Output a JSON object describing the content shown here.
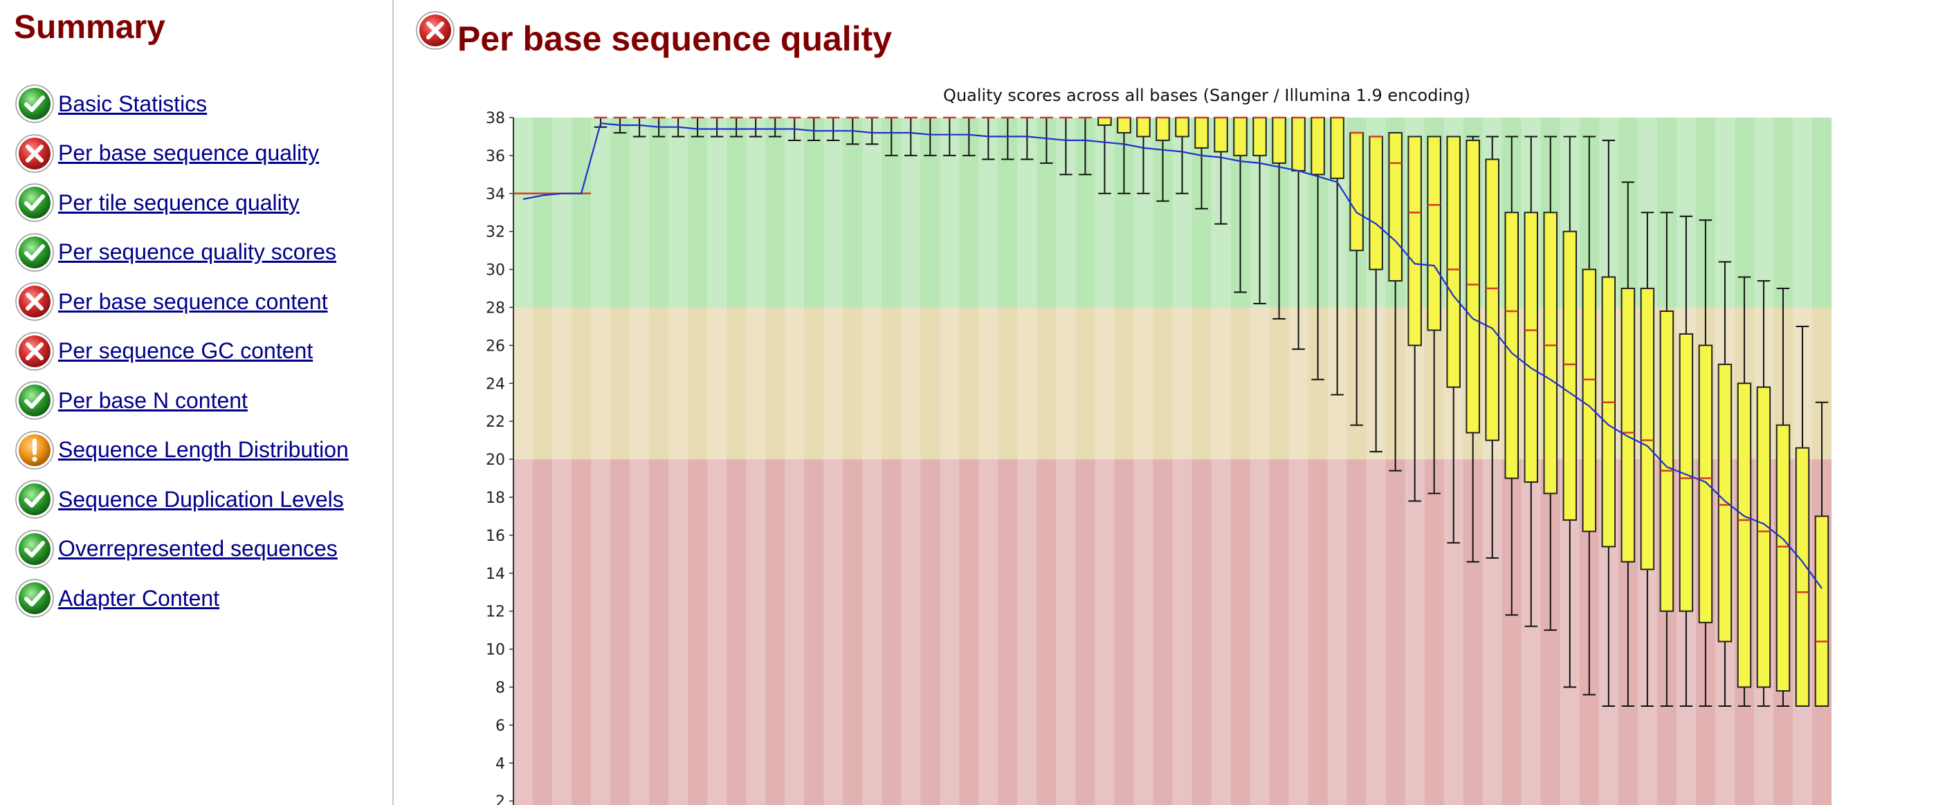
{
  "sidebar": {
    "title": "Summary",
    "items": [
      {
        "label": "Basic Statistics",
        "status": "pass"
      },
      {
        "label": "Per base sequence quality",
        "status": "fail"
      },
      {
        "label": "Per tile sequence quality",
        "status": "pass"
      },
      {
        "label": "Per sequence quality scores",
        "status": "pass"
      },
      {
        "label": "Per base sequence content",
        "status": "fail"
      },
      {
        "label": "Per sequence GC content",
        "status": "fail"
      },
      {
        "label": "Per base N content",
        "status": "pass"
      },
      {
        "label": "Sequence Length Distribution",
        "status": "warn"
      },
      {
        "label": "Sequence Duplication Levels",
        "status": "pass"
      },
      {
        "label": "Overrepresented sequences",
        "status": "pass"
      },
      {
        "label": "Adapter Content",
        "status": "pass"
      }
    ]
  },
  "main": {
    "title": "Per base sequence quality",
    "status": "fail"
  },
  "colors": {
    "pass": "#2e9d2e",
    "fail": "#d42a2a",
    "warn": "#f0961c",
    "title": "#800000",
    "link": "#00008b",
    "box_fill": "#f5f54a",
    "median": "#d23c2c",
    "mean_line": "#1f2fd0",
    "band_good": "#b8e6b4",
    "band_ok": "#e8dcb4",
    "band_bad": "#e2b2b2"
  },
  "chart_data": {
    "type": "box",
    "title": "Quality scores across all bases (Sanger / Illumina 1.9 encoding)",
    "ylim": [
      2,
      38
    ],
    "yticks": [
      2,
      4,
      6,
      8,
      10,
      12,
      14,
      16,
      18,
      20,
      22,
      24,
      26,
      28,
      30,
      32,
      34,
      36,
      38
    ],
    "bands": [
      {
        "from": 28,
        "to": 38,
        "quality": "good"
      },
      {
        "from": 20,
        "to": 28,
        "quality": "ok"
      },
      {
        "from": 0,
        "to": 20,
        "quality": "bad"
      }
    ],
    "position_count": 66,
    "boxes": [
      {
        "pos": 1,
        "q1": 34,
        "median": 34,
        "q3": 34,
        "low": 34,
        "high": 34,
        "mean": 33.7
      },
      {
        "pos": 2,
        "q1": 34,
        "median": 34,
        "q3": 34,
        "low": 34,
        "high": 34,
        "mean": 33.9
      },
      {
        "pos": 3,
        "q1": 34,
        "median": 34,
        "q3": 34,
        "low": 34,
        "high": 34,
        "mean": 34.0
      },
      {
        "pos": 4,
        "q1": 34,
        "median": 34,
        "q3": 34,
        "low": 34,
        "high": 34,
        "mean": 34.0
      },
      {
        "pos": 5,
        "q1": 38,
        "median": 38,
        "q3": 38,
        "low": 37.5,
        "high": 38,
        "mean": 37.7
      },
      {
        "pos": 6,
        "q1": 38,
        "median": 38,
        "q3": 38,
        "low": 37.2,
        "high": 38,
        "mean": 37.6
      },
      {
        "pos": 7,
        "q1": 38,
        "median": 38,
        "q3": 38,
        "low": 37.0,
        "high": 38,
        "mean": 37.6
      },
      {
        "pos": 8,
        "q1": 38,
        "median": 38,
        "q3": 38,
        "low": 37.0,
        "high": 38,
        "mean": 37.5
      },
      {
        "pos": 9,
        "q1": 38,
        "median": 38,
        "q3": 38,
        "low": 37.0,
        "high": 38,
        "mean": 37.5
      },
      {
        "pos": 10,
        "q1": 38,
        "median": 38,
        "q3": 38,
        "low": 37.0,
        "high": 38,
        "mean": 37.4
      },
      {
        "pos": 11,
        "q1": 38,
        "median": 38,
        "q3": 38,
        "low": 37.0,
        "high": 38,
        "mean": 37.4
      },
      {
        "pos": 12,
        "q1": 38,
        "median": 38,
        "q3": 38,
        "low": 37.0,
        "high": 38,
        "mean": 37.4
      },
      {
        "pos": 13,
        "q1": 38,
        "median": 38,
        "q3": 38,
        "low": 37.0,
        "high": 38,
        "mean": 37.4
      },
      {
        "pos": 14,
        "q1": 38,
        "median": 38,
        "q3": 38,
        "low": 37.0,
        "high": 38,
        "mean": 37.4
      },
      {
        "pos": 15,
        "q1": 38,
        "median": 38,
        "q3": 38,
        "low": 36.8,
        "high": 38,
        "mean": 37.4
      },
      {
        "pos": 16,
        "q1": 38,
        "median": 38,
        "q3": 38,
        "low": 36.8,
        "high": 38,
        "mean": 37.3
      },
      {
        "pos": 17,
        "q1": 38,
        "median": 38,
        "q3": 38,
        "low": 36.8,
        "high": 38,
        "mean": 37.3
      },
      {
        "pos": 18,
        "q1": 38,
        "median": 38,
        "q3": 38,
        "low": 36.6,
        "high": 38,
        "mean": 37.3
      },
      {
        "pos": 19,
        "q1": 38,
        "median": 38,
        "q3": 38,
        "low": 36.6,
        "high": 38,
        "mean": 37.2
      },
      {
        "pos": 20,
        "q1": 38,
        "median": 38,
        "q3": 38,
        "low": 36.0,
        "high": 38,
        "mean": 37.2
      },
      {
        "pos": 21,
        "q1": 38,
        "median": 38,
        "q3": 38,
        "low": 36.0,
        "high": 38,
        "mean": 37.2
      },
      {
        "pos": 22,
        "q1": 38,
        "median": 38,
        "q3": 38,
        "low": 36.0,
        "high": 38,
        "mean": 37.1
      },
      {
        "pos": 23,
        "q1": 38,
        "median": 38,
        "q3": 38,
        "low": 36.0,
        "high": 38,
        "mean": 37.1
      },
      {
        "pos": 24,
        "q1": 38,
        "median": 38,
        "q3": 38,
        "low": 36.0,
        "high": 38,
        "mean": 37.1
      },
      {
        "pos": 25,
        "q1": 38,
        "median": 38,
        "q3": 38,
        "low": 35.8,
        "high": 38,
        "mean": 37.0
      },
      {
        "pos": 26,
        "q1": 38,
        "median": 38,
        "q3": 38,
        "low": 35.8,
        "high": 38,
        "mean": 37.0
      },
      {
        "pos": 27,
        "q1": 38,
        "median": 38,
        "q3": 38,
        "low": 35.8,
        "high": 38,
        "mean": 37.0
      },
      {
        "pos": 28,
        "q1": 38,
        "median": 38,
        "q3": 38,
        "low": 35.6,
        "high": 38,
        "mean": 36.9
      },
      {
        "pos": 29,
        "q1": 38,
        "median": 38,
        "q3": 38,
        "low": 35.0,
        "high": 38,
        "mean": 36.8
      },
      {
        "pos": 30,
        "q1": 38,
        "median": 38,
        "q3": 38,
        "low": 35.0,
        "high": 38,
        "mean": 36.8
      },
      {
        "pos": 31,
        "q1": 37.6,
        "median": 38,
        "q3": 38,
        "low": 34.0,
        "high": 38,
        "mean": 36.7
      },
      {
        "pos": 32,
        "q1": 37.2,
        "median": 38,
        "q3": 38,
        "low": 34.0,
        "high": 38,
        "mean": 36.6
      },
      {
        "pos": 33,
        "q1": 37.0,
        "median": 38,
        "q3": 38,
        "low": 34.0,
        "high": 38,
        "mean": 36.4
      },
      {
        "pos": 34,
        "q1": 36.8,
        "median": 38,
        "q3": 38,
        "low": 33.6,
        "high": 38,
        "mean": 36.3
      },
      {
        "pos": 35,
        "q1": 37.0,
        "median": 38,
        "q3": 38,
        "low": 34.0,
        "high": 38,
        "mean": 36.2
      },
      {
        "pos": 36,
        "q1": 36.4,
        "median": 38,
        "q3": 38,
        "low": 33.2,
        "high": 38,
        "mean": 36.0
      },
      {
        "pos": 37,
        "q1": 36.2,
        "median": 38,
        "q3": 38,
        "low": 32.4,
        "high": 38,
        "mean": 35.9
      },
      {
        "pos": 38,
        "q1": 36.0,
        "median": 38,
        "q3": 38,
        "low": 28.8,
        "high": 38,
        "mean": 35.7
      },
      {
        "pos": 39,
        "q1": 36.0,
        "median": 38,
        "q3": 38,
        "low": 28.2,
        "high": 38,
        "mean": 35.6
      },
      {
        "pos": 40,
        "q1": 35.6,
        "median": 38,
        "q3": 38,
        "low": 27.4,
        "high": 38,
        "mean": 35.4
      },
      {
        "pos": 41,
        "q1": 35.2,
        "median": 38,
        "q3": 38,
        "low": 25.8,
        "high": 38,
        "mean": 35.2
      },
      {
        "pos": 42,
        "q1": 35.0,
        "median": 38,
        "q3": 38,
        "low": 24.2,
        "high": 38,
        "mean": 34.9
      },
      {
        "pos": 43,
        "q1": 34.8,
        "median": 38,
        "q3": 38,
        "low": 23.4,
        "high": 38,
        "mean": 34.6
      },
      {
        "pos": 44,
        "q1": 31.0,
        "median": 37.2,
        "q3": 37.2,
        "low": 21.8,
        "high": 37.2,
        "mean": 33.0
      },
      {
        "pos": 45,
        "q1": 30.0,
        "median": 37.0,
        "q3": 37.0,
        "low": 20.4,
        "high": 37.0,
        "mean": 32.4
      },
      {
        "pos": 46,
        "q1": 29.4,
        "median": 35.6,
        "q3": 37.2,
        "low": 19.4,
        "high": 37.2,
        "mean": 31.5
      },
      {
        "pos": 47,
        "q1": 26.0,
        "median": 33.0,
        "q3": 37.0,
        "low": 17.8,
        "high": 37.0,
        "mean": 30.3
      },
      {
        "pos": 48,
        "q1": 26.8,
        "median": 33.4,
        "q3": 37.0,
        "low": 18.2,
        "high": 37.0,
        "mean": 30.2
      },
      {
        "pos": 49,
        "q1": 23.8,
        "median": 30.0,
        "q3": 37.0,
        "low": 15.6,
        "high": 37.0,
        "mean": 28.6
      },
      {
        "pos": 50,
        "q1": 21.4,
        "median": 29.2,
        "q3": 36.8,
        "low": 14.6,
        "high": 37.0,
        "mean": 27.4
      },
      {
        "pos": 51,
        "q1": 21.0,
        "median": 29.0,
        "q3": 35.8,
        "low": 14.8,
        "high": 37.0,
        "mean": 26.9
      },
      {
        "pos": 52,
        "q1": 19.0,
        "median": 27.8,
        "q3": 33.0,
        "low": 11.8,
        "high": 37.0,
        "mean": 25.6
      },
      {
        "pos": 53,
        "q1": 18.8,
        "median": 26.8,
        "q3": 33.0,
        "low": 11.2,
        "high": 37.0,
        "mean": 24.8
      },
      {
        "pos": 54,
        "q1": 18.2,
        "median": 26.0,
        "q3": 33.0,
        "low": 11.0,
        "high": 37.0,
        "mean": 24.2
      },
      {
        "pos": 55,
        "q1": 16.8,
        "median": 25.0,
        "q3": 32.0,
        "low": 8.0,
        "high": 37.0,
        "mean": 23.5
      },
      {
        "pos": 56,
        "q1": 16.2,
        "median": 24.2,
        "q3": 30.0,
        "low": 7.6,
        "high": 37.0,
        "mean": 22.8
      },
      {
        "pos": 57,
        "q1": 15.4,
        "median": 23.0,
        "q3": 29.6,
        "low": 7.0,
        "high": 36.8,
        "mean": 21.8
      },
      {
        "pos": 58,
        "q1": 14.6,
        "median": 21.4,
        "q3": 29.0,
        "low": 7.0,
        "high": 34.6,
        "mean": 21.2
      },
      {
        "pos": 59,
        "q1": 14.2,
        "median": 21.0,
        "q3": 29.0,
        "low": 7.0,
        "high": 33.0,
        "mean": 20.7
      },
      {
        "pos": 60,
        "q1": 12.0,
        "median": 19.4,
        "q3": 27.8,
        "low": 7.0,
        "high": 33.0,
        "mean": 19.6
      },
      {
        "pos": 61,
        "q1": 12.0,
        "median": 19.0,
        "q3": 26.6,
        "low": 7.0,
        "high": 32.8,
        "mean": 19.2
      },
      {
        "pos": 62,
        "q1": 11.4,
        "median": 19.0,
        "q3": 26.0,
        "low": 7.0,
        "high": 32.6,
        "mean": 18.8
      },
      {
        "pos": 63,
        "q1": 10.4,
        "median": 17.6,
        "q3": 25.0,
        "low": 7.0,
        "high": 30.4,
        "mean": 17.8
      },
      {
        "pos": 64,
        "q1": 8.0,
        "median": 16.8,
        "q3": 24.0,
        "low": 7.0,
        "high": 29.6,
        "mean": 17.0
      },
      {
        "pos": 65,
        "q1": 8.0,
        "median": 16.2,
        "q3": 23.8,
        "low": 7.0,
        "high": 29.4,
        "mean": 16.6
      },
      {
        "pos": 66,
        "q1": 7.8,
        "median": 15.4,
        "q3": 21.8,
        "low": 7.0,
        "high": 29.0,
        "mean": 15.8
      }
    ],
    "tail_boxes": [
      {
        "pos": 67,
        "q1": 7.0,
        "median": 13.0,
        "q3": 20.6,
        "low": 7.0,
        "high": 27.0,
        "mean": 14.6
      },
      {
        "pos": 68,
        "q1": 7.0,
        "median": 10.4,
        "q3": 17.0,
        "low": 7.0,
        "high": 23.0,
        "mean": 13.2
      }
    ]
  }
}
